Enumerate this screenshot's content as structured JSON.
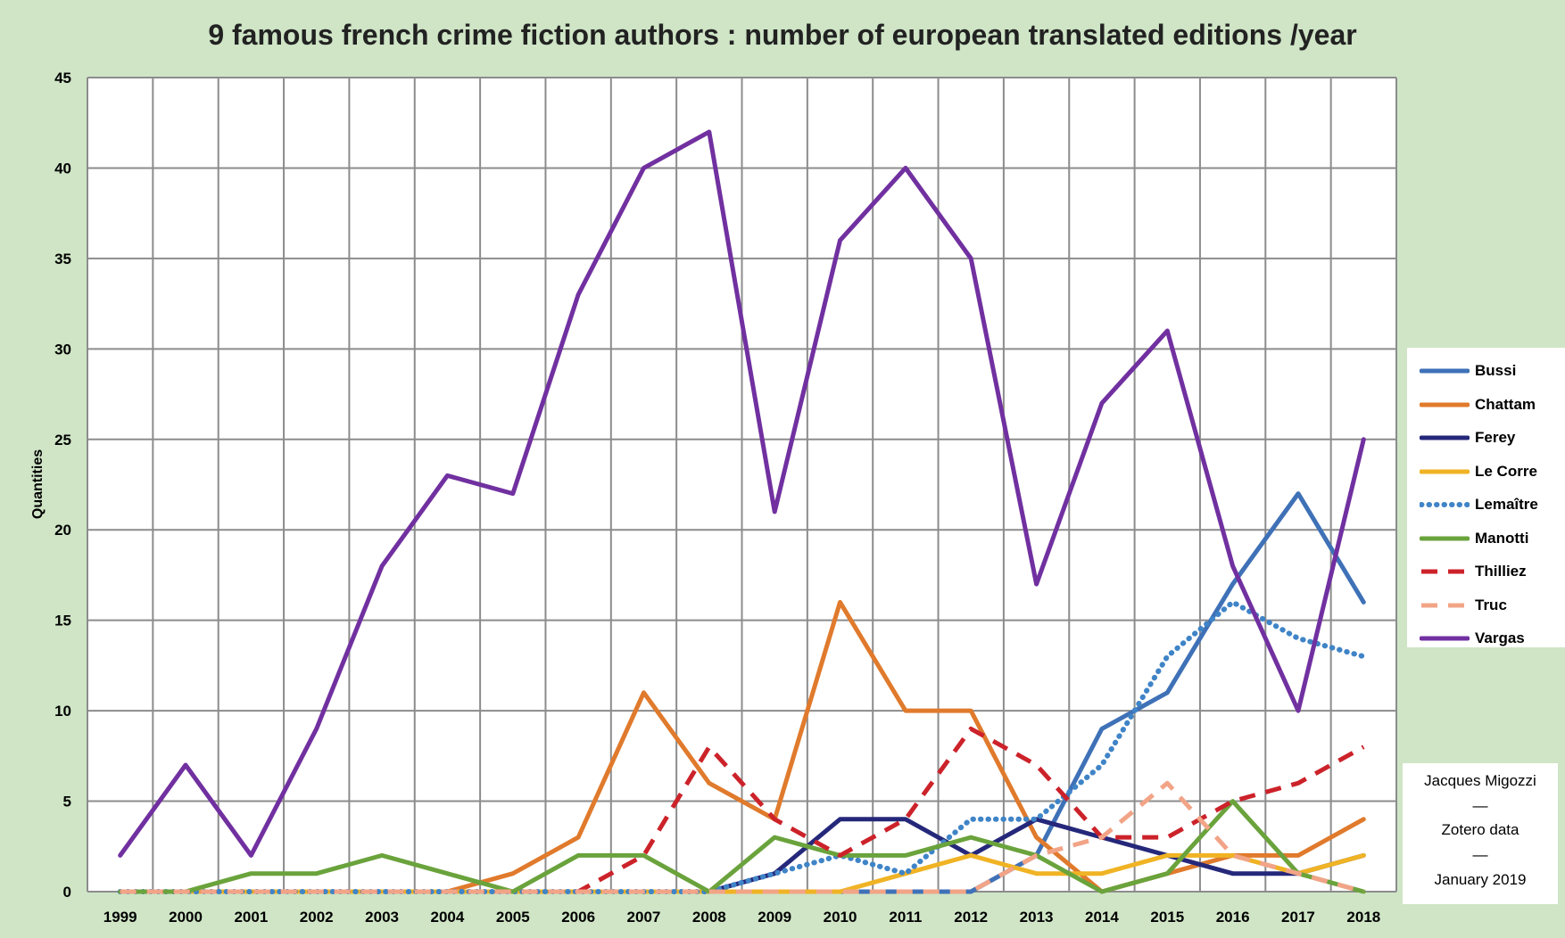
{
  "chart_data": {
    "type": "line",
    "title": "9 famous french crime fiction authors : number of european translated editions /year",
    "xlabel": "",
    "ylabel": "Quantities",
    "ylim": [
      0,
      45
    ],
    "yticks": [
      0,
      5,
      10,
      15,
      20,
      25,
      30,
      35,
      40,
      45
    ],
    "grid": true,
    "legend_position": "right",
    "x": [
      "1999",
      "2000",
      "2001",
      "2002",
      "2003",
      "2004",
      "2005",
      "2006",
      "2007",
      "2008",
      "2009",
      "2010",
      "2011",
      "2012",
      "2013",
      "2014",
      "2015",
      "2016",
      "2017",
      "2018"
    ],
    "series": [
      {
        "name": "Bussi",
        "color": "#3f71b7",
        "style": "solid",
        "values": [
          0,
          0,
          0,
          0,
          0,
          0,
          0,
          0,
          0,
          0,
          0,
          0,
          0,
          0,
          2,
          9,
          11,
          17,
          22,
          16
        ]
      },
      {
        "name": "Chattam",
        "color": "#e07a2c",
        "style": "solid",
        "values": [
          0,
          0,
          0,
          0,
          0,
          0,
          1,
          3,
          11,
          6,
          4,
          16,
          10,
          10,
          3,
          0,
          1,
          2,
          2,
          4
        ]
      },
      {
        "name": "Ferey",
        "color": "#25287a",
        "style": "solid",
        "values": [
          0,
          0,
          0,
          0,
          0,
          0,
          0,
          0,
          0,
          0,
          1,
          4,
          4,
          2,
          4,
          3,
          2,
          1,
          1,
          2
        ]
      },
      {
        "name": "Le Corre",
        "color": "#f0b324",
        "style": "solid",
        "values": [
          0,
          0,
          0,
          0,
          0,
          0,
          0,
          0,
          0,
          0,
          0,
          0,
          1,
          2,
          1,
          1,
          2,
          2,
          1,
          2
        ]
      },
      {
        "name": "Lemaître",
        "color": "#3f84c7",
        "style": "dotted",
        "values": [
          0,
          0,
          0,
          0,
          0,
          0,
          0,
          0,
          0,
          0,
          1,
          2,
          1,
          4,
          4,
          7,
          13,
          16,
          14,
          13
        ]
      },
      {
        "name": "Manotti",
        "color": "#6aa33c",
        "style": "solid",
        "values": [
          0,
          0,
          1,
          1,
          2,
          1,
          0,
          2,
          2,
          0,
          3,
          2,
          2,
          3,
          2,
          0,
          1,
          5,
          1,
          0
        ]
      },
      {
        "name": "Thilliez",
        "color": "#cc222a",
        "style": "dashed",
        "values": [
          0,
          0,
          0,
          0,
          0,
          0,
          0,
          0,
          2,
          8,
          4,
          2,
          4,
          9,
          7,
          3,
          3,
          5,
          6,
          8
        ]
      },
      {
        "name": "Truc",
        "color": "#f2a487",
        "style": "dashed",
        "values": [
          0,
          0,
          0,
          0,
          0,
          0,
          0,
          0,
          0,
          0,
          0,
          0,
          0,
          0,
          2,
          3,
          6,
          2,
          1,
          0
        ]
      },
      {
        "name": "Vargas",
        "color": "#7130a0",
        "style": "solid",
        "values": [
          2,
          7,
          2,
          9,
          18,
          23,
          22,
          33,
          40,
          42,
          21,
          36,
          40,
          35,
          17,
          27,
          31,
          18,
          10,
          25
        ]
      }
    ]
  },
  "credit": {
    "line1": "Jacques Migozzi",
    "sep1": "—",
    "line2": "Zotero data",
    "sep2": "—",
    "line3": "January 2019"
  }
}
